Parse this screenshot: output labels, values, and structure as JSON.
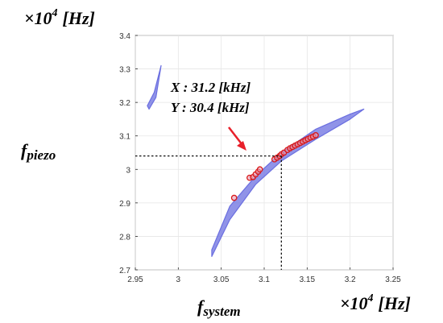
{
  "chart_data": {
    "type": "scatter",
    "title": "",
    "xlabel": "f_system",
    "ylabel": "f_piezo",
    "x_exponent_label": {
      "base": "×10",
      "exponent": "4",
      "unit": "[Hz]"
    },
    "y_exponent_label": {
      "base": "×10",
      "exponent": "4",
      "unit": "[Hz]"
    },
    "xlim": [
      2.95,
      3.25
    ],
    "ylim": [
      2.7,
      3.4
    ],
    "x_ticks": [
      "2.95",
      "3",
      "3.05",
      "3.1",
      "3.15",
      "3.2",
      "3.25"
    ],
    "y_ticks": [
      "2.7",
      "2.8",
      "2.9",
      "3",
      "3.1",
      "3.2",
      "3.3",
      "3.4"
    ],
    "grid": true,
    "series": [
      {
        "kind": "band",
        "color": "#6b6fe0",
        "upper": [
          [
            3.039,
            2.76
          ],
          [
            3.06,
            2.89
          ],
          [
            3.09,
            2.98
          ],
          [
            3.12,
            3.05
          ],
          [
            3.16,
            3.12
          ],
          [
            3.2,
            3.165
          ],
          [
            3.216,
            3.18
          ]
        ],
        "lower": [
          [
            3.039,
            2.74
          ],
          [
            3.06,
            2.85
          ],
          [
            3.09,
            2.955
          ],
          [
            3.12,
            3.025
          ],
          [
            3.16,
            3.09
          ],
          [
            3.2,
            3.15
          ],
          [
            3.216,
            3.18
          ]
        ]
      },
      {
        "kind": "band",
        "color": "#6b6fe0",
        "upper": [
          [
            2.964,
            3.19
          ],
          [
            2.972,
            3.23
          ],
          [
            2.98,
            3.31
          ]
        ],
        "lower": [
          [
            2.966,
            3.18
          ],
          [
            2.974,
            3.215
          ],
          [
            2.98,
            3.31
          ]
        ]
      },
      {
        "kind": "points",
        "color": "#d81818",
        "points": [
          [
            3.065,
            2.915
          ],
          [
            3.083,
            2.975
          ],
          [
            3.087,
            2.977
          ],
          [
            3.09,
            2.985
          ],
          [
            3.093,
            2.993
          ],
          [
            3.095,
            3.0
          ],
          [
            3.112,
            3.03
          ],
          [
            3.115,
            3.035
          ],
          [
            3.118,
            3.04
          ],
          [
            3.12,
            3.045
          ],
          [
            3.123,
            3.05
          ],
          [
            3.127,
            3.058
          ],
          [
            3.13,
            3.063
          ],
          [
            3.133,
            3.067
          ],
          [
            3.136,
            3.071
          ],
          [
            3.139,
            3.075
          ],
          [
            3.142,
            3.079
          ],
          [
            3.145,
            3.083
          ],
          [
            3.148,
            3.087
          ],
          [
            3.151,
            3.091
          ],
          [
            3.154,
            3.095
          ],
          [
            3.157,
            3.098
          ],
          [
            3.16,
            3.102
          ]
        ]
      }
    ],
    "reference": {
      "x": 3.12,
      "y": 3.04
    },
    "annotation": {
      "line1": "X : 31.2 [kHz]",
      "line2": "Y : 30.4 [kHz]",
      "arrow_color": "#e8202a"
    }
  }
}
